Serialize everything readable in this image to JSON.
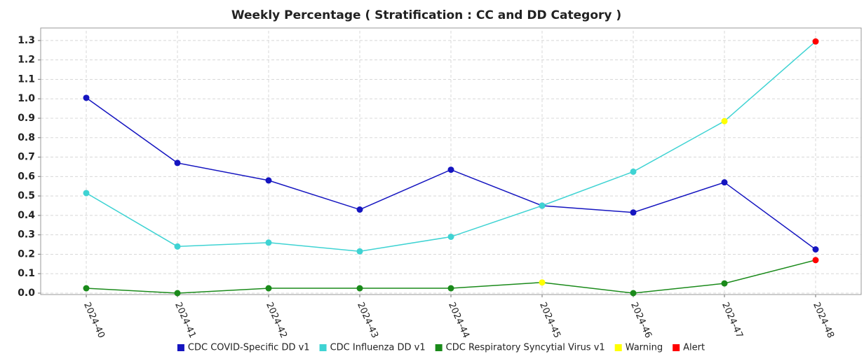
{
  "chart_data": {
    "type": "line",
    "title": "Weekly Percentage ( Stratification : CC and DD Category )",
    "categories": [
      "2024-40",
      "2024-41",
      "2024-42",
      "2024-43",
      "2024-44",
      "2024-45",
      "2024-46",
      "2024-47",
      "2024-48"
    ],
    "series": [
      {
        "name": "CDC COVID-Specific DD v1",
        "color": "#1515c0",
        "values": [
          1.005,
          0.67,
          0.58,
          0.43,
          0.635,
          0.45,
          0.415,
          0.57,
          0.225
        ],
        "point_colors": [
          null,
          null,
          null,
          null,
          null,
          null,
          null,
          null,
          null
        ]
      },
      {
        "name": "CDC Influenza DD v1",
        "color": "#3fd3d3",
        "values": [
          0.515,
          0.24,
          0.26,
          0.215,
          0.29,
          0.45,
          0.625,
          0.885,
          1.295
        ],
        "point_colors": [
          null,
          null,
          null,
          null,
          null,
          null,
          null,
          "#ffff00",
          "#ff0000"
        ]
      },
      {
        "name": "CDC Respiratory Syncytial Virus v1",
        "color": "#1a8a1a",
        "values": [
          0.025,
          0,
          0.025,
          0.025,
          0.025,
          0.055,
          0,
          0.05,
          0.17
        ],
        "point_colors": [
          null,
          null,
          null,
          null,
          null,
          "#ffff00",
          null,
          null,
          "#ff0000"
        ]
      }
    ],
    "status_legend": [
      {
        "name": "Warning",
        "color": "#ffff00"
      },
      {
        "name": "Alert",
        "color": "#ff0000"
      }
    ],
    "ylim": [
      0,
      1.35
    ],
    "yticks": [
      {
        "value": 0,
        "label": "0.0"
      },
      0.1,
      0.2,
      0.3,
      0.4,
      0.5,
      0.6,
      0.7,
      0.8,
      0.9,
      {
        "value": 1,
        "label": "1.0"
      },
      1.1,
      1.2,
      1.3
    ],
    "grid": true
  }
}
